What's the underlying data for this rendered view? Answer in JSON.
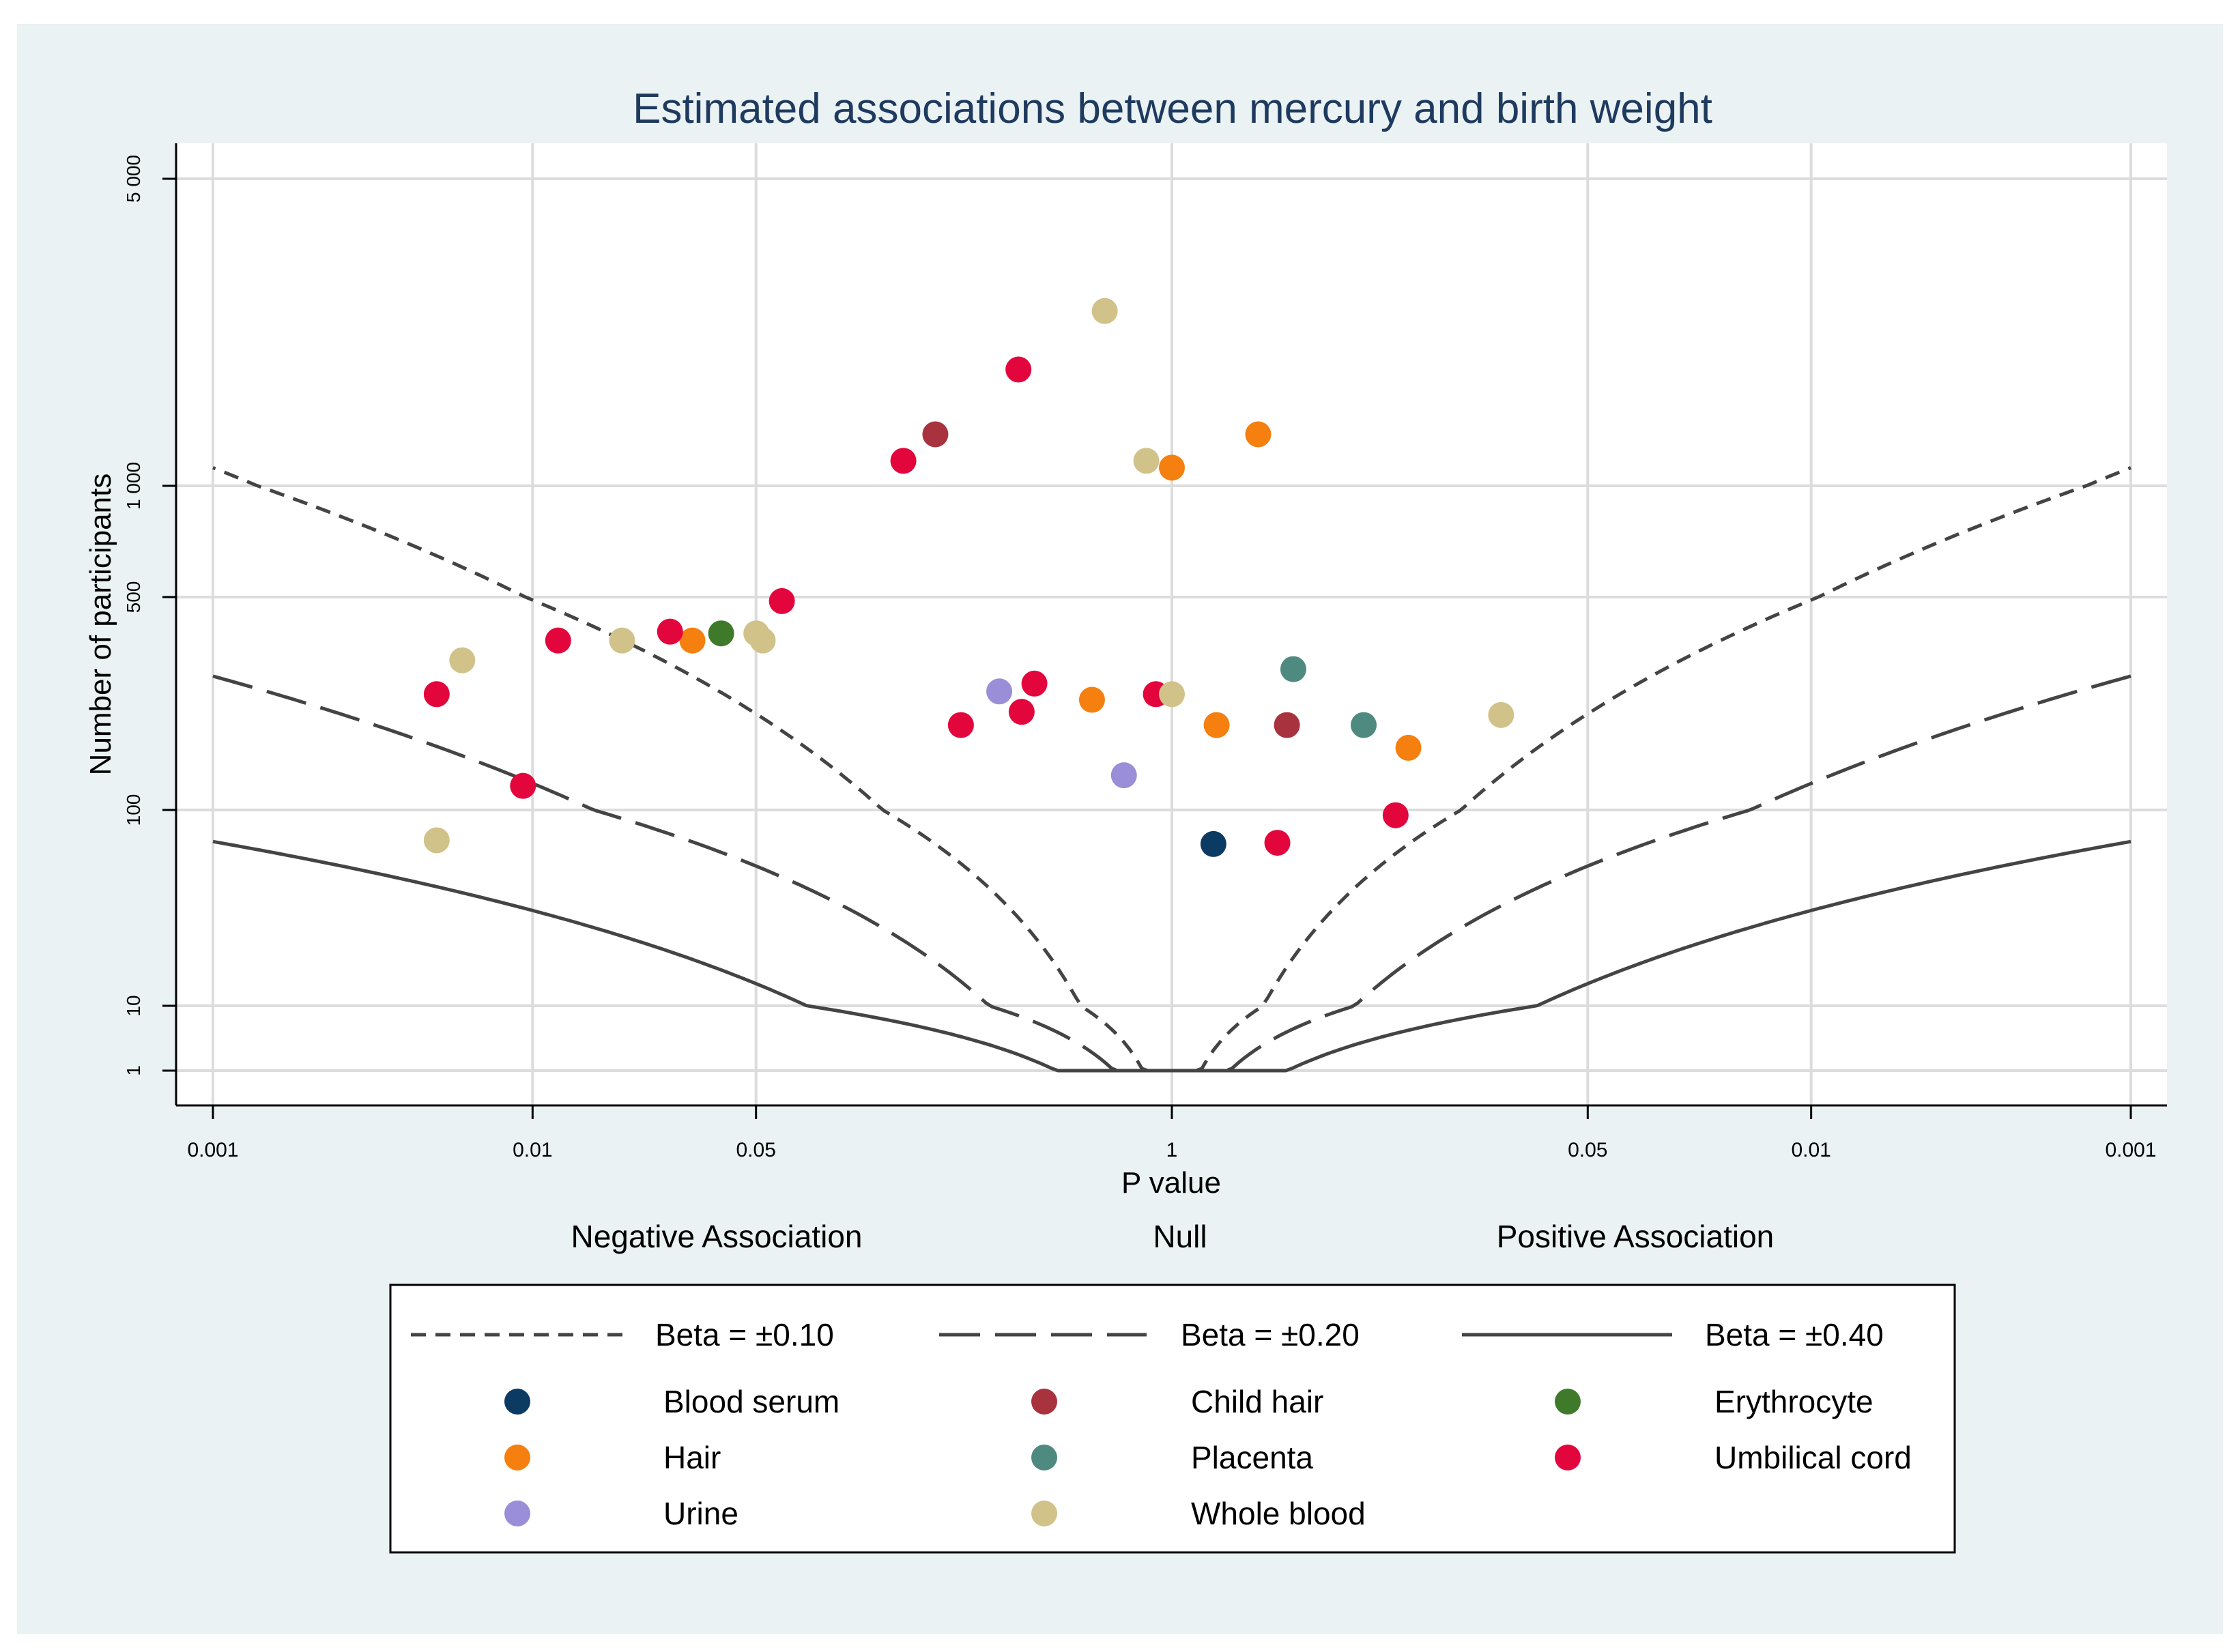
{
  "chart_data": {
    "type": "scatter",
    "title": "Estimated associations between mercury and birth weight",
    "xlabel": "P value",
    "ylabel": "Number of participants",
    "x_scale": "signed -log10(p); negative values = negative association, positive values = positive association",
    "xlim": [
      -3,
      3
    ],
    "ylim": [
      0.5,
      5000
    ],
    "x_ticks": [
      {
        "value": -3,
        "label": "0.001"
      },
      {
        "value": -2,
        "label": "0.01"
      },
      {
        "value": -1.301,
        "label": "0.05"
      },
      {
        "value": 0,
        "label": "1"
      },
      {
        "value": 1.301,
        "label": "0.05"
      },
      {
        "value": 2,
        "label": "0.01"
      },
      {
        "value": 3,
        "label": "0.001"
      }
    ],
    "y_ticks": [
      {
        "value": 1,
        "label": "1"
      },
      {
        "value": 10,
        "label": "10"
      },
      {
        "value": 100,
        "label": "100"
      },
      {
        "value": 500,
        "label": "500"
      },
      {
        "value": 1000,
        "label": "1 000"
      },
      {
        "value": 5000,
        "label": "5 000"
      }
    ],
    "region_labels": [
      "Negative Association",
      "Null",
      "Positive Association"
    ],
    "grid": true,
    "legend_position": "bottom",
    "curves": [
      {
        "name": "Beta = ±0.10",
        "beta": 0.1,
        "style": "short-dash",
        "k_extreme": 1100
      },
      {
        "name": "Beta = ±0.20",
        "beta": 0.2,
        "style": "long-dash",
        "k_extreme": 275
      },
      {
        "name": "Beta = ±0.40",
        "beta": 0.4,
        "style": "solid",
        "k_extreme": 69
      }
    ],
    "series": [
      {
        "name": "Blood serum",
        "color": "#0b3a63",
        "points": [
          [
            0.13,
            67
          ]
        ]
      },
      {
        "name": "Child hair",
        "color": "#a8323e",
        "points": [
          [
            -0.74,
            1310
          ],
          [
            0.36,
            190
          ]
        ]
      },
      {
        "name": "Erythrocyte",
        "color": "#3f7a2b",
        "points": [
          [
            -1.41,
            380
          ]
        ]
      },
      {
        "name": "Hair",
        "color": "#f57f0f",
        "points": [
          [
            -1.5,
            360
          ],
          [
            -0.25,
            230
          ],
          [
            0.0,
            1100
          ],
          [
            0.14,
            190
          ],
          [
            0.27,
            1310
          ],
          [
            0.74,
            160
          ]
        ]
      },
      {
        "name": "Placenta",
        "color": "#4f8a80",
        "points": [
          [
            0.38,
            290
          ],
          [
            0.6,
            190
          ]
        ]
      },
      {
        "name": "Umbilical cord",
        "color": "#e3063d",
        "points": [
          [
            -2.3,
            240
          ],
          [
            -2.03,
            120
          ],
          [
            -1.92,
            360
          ],
          [
            -1.57,
            385
          ],
          [
            -1.22,
            485
          ],
          [
            -0.84,
            1140
          ],
          [
            -0.66,
            190
          ],
          [
            -0.48,
            1840
          ],
          [
            -0.47,
            210
          ],
          [
            -0.43,
            260
          ],
          [
            -0.05,
            240
          ],
          [
            0.33,
            68
          ],
          [
            0.7,
            94
          ]
        ]
      },
      {
        "name": "Urine",
        "color": "#9b8ed8",
        "points": [
          [
            -0.54,
            245
          ],
          [
            -0.15,
            130
          ]
        ]
      },
      {
        "name": "Whole blood",
        "color": "#d1c28a",
        "points": [
          [
            -2.3,
            70
          ],
          [
            -2.22,
            310
          ],
          [
            -1.72,
            360
          ],
          [
            -1.3,
            380
          ],
          [
            -1.28,
            360
          ],
          [
            -0.21,
            2500
          ],
          [
            -0.08,
            1140
          ],
          [
            0.0,
            240
          ],
          [
            1.03,
            205
          ]
        ]
      }
    ]
  }
}
